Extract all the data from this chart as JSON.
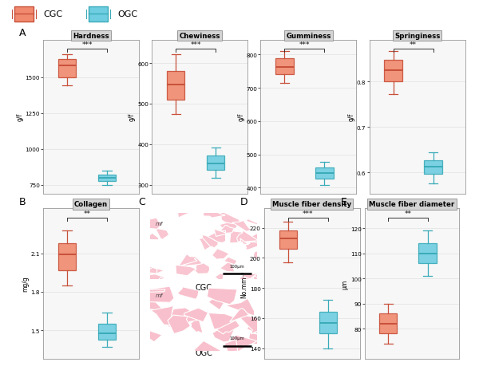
{
  "cgc_color": "#F0896E",
  "ogc_color": "#6ECDE0",
  "cgc_edge": "#C8503A",
  "ogc_edge": "#3AABB8",
  "background_color": "#FFFFFF",
  "panel_bg": "#F7F7F7",
  "grid_color": "#E5E5E5",
  "hardness": {
    "cgc": {
      "median": 1580,
      "q1": 1500,
      "q3": 1625,
      "whislo": 1440,
      "whishi": 1660
    },
    "ogc": {
      "median": 800,
      "q1": 775,
      "q3": 820,
      "whislo": 748,
      "whishi": 852
    },
    "ylabel": "g/f",
    "yticks": [
      750,
      1000,
      1250,
      1500
    ],
    "ylim": [
      690,
      1760
    ],
    "sig": "***"
  },
  "chewiness": {
    "cgc": {
      "median": 548,
      "q1": 510,
      "q3": 580,
      "whislo": 475,
      "whishi": 622
    },
    "ogc": {
      "median": 353,
      "q1": 337,
      "q3": 372,
      "whislo": 316,
      "whishi": 392
    },
    "ylabel": "g/f",
    "yticks": [
      300,
      400,
      500,
      600
    ],
    "ylim": [
      278,
      658
    ],
    "sig": "***"
  },
  "gumminess": {
    "cgc": {
      "median": 762,
      "q1": 740,
      "q3": 788,
      "whislo": 714,
      "whishi": 810
    },
    "ogc": {
      "median": 443,
      "q1": 428,
      "q3": 460,
      "whislo": 408,
      "whishi": 478
    },
    "ylabel": "g/f",
    "yticks": [
      400,
      500,
      600,
      700,
      800
    ],
    "ylim": [
      382,
      845
    ],
    "sig": "***"
  },
  "springiness": {
    "cgc": {
      "median": 0.825,
      "q1": 0.8,
      "q3": 0.848,
      "whislo": 0.772,
      "whishi": 0.868
    },
    "ogc": {
      "median": 0.612,
      "q1": 0.596,
      "q3": 0.626,
      "whislo": 0.576,
      "whishi": 0.644
    },
    "ylabel": "g/f",
    "yticks": [
      0.6,
      0.7,
      0.8
    ],
    "ylim": [
      0.553,
      0.893
    ],
    "sig": "**"
  },
  "collagen": {
    "cgc": {
      "median": 2.09,
      "q1": 1.97,
      "q3": 2.18,
      "whislo": 1.85,
      "whishi": 2.28
    },
    "ogc": {
      "median": 1.48,
      "q1": 1.43,
      "q3": 1.55,
      "whislo": 1.37,
      "whishi": 1.64
    },
    "ylabel": "mg/g",
    "yticks": [
      1.5,
      1.8,
      2.1
    ],
    "ylim": [
      1.28,
      2.45
    ],
    "sig": "**"
  },
  "muscle_density": {
    "cgc": {
      "median": 213,
      "q1": 206,
      "q3": 218,
      "whislo": 197,
      "whishi": 224
    },
    "ogc": {
      "median": 157,
      "q1": 150,
      "q3": 164,
      "whislo": 140,
      "whishi": 172
    },
    "ylabel": "No.mm⁻²",
    "yticks": [
      140,
      160,
      180,
      200,
      220
    ],
    "ylim": [
      133,
      233
    ],
    "sig": "***"
  },
  "muscle_diameter": {
    "cgc": {
      "median": 82,
      "q1": 78,
      "q3": 86,
      "whislo": 74,
      "whishi": 90
    },
    "ogc": {
      "median": 110,
      "q1": 106,
      "q3": 114,
      "whislo": 101,
      "whishi": 119
    },
    "ylabel": "μm",
    "yticks": [
      80,
      90,
      100,
      110,
      120
    ],
    "ylim": [
      68,
      128
    ],
    "sig": "**"
  }
}
